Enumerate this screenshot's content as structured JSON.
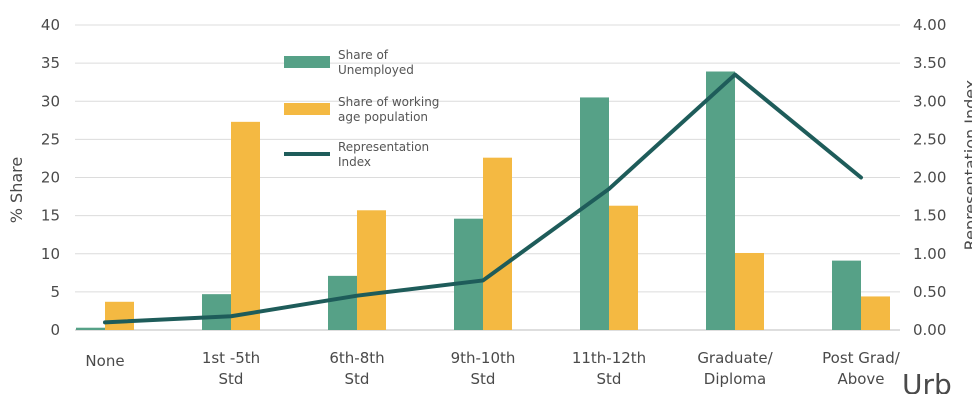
{
  "chart_data": {
    "type": "bar",
    "categories": [
      [
        "None"
      ],
      [
        "1st -5th",
        "Std"
      ],
      [
        "6th-8th",
        "Std"
      ],
      [
        "9th-10th",
        "Std"
      ],
      [
        "11th-12th",
        "Std"
      ],
      [
        "Graduate/",
        "Diploma"
      ],
      [
        "Post Grad/",
        "Above"
      ]
    ],
    "series": [
      {
        "name": "Share of Unemployed",
        "legend_lines": [
          "Share of",
          "Unemployed"
        ],
        "kind": "bar",
        "axis": "left",
        "color": "#56A187",
        "values": [
          0.3,
          4.7,
          7.1,
          14.6,
          30.5,
          33.9,
          9.1
        ]
      },
      {
        "name": "Share of working age population",
        "legend_lines": [
          "Share of working",
          "age population"
        ],
        "kind": "bar",
        "axis": "left",
        "color": "#F4B942",
        "values": [
          3.7,
          27.3,
          15.7,
          22.6,
          16.3,
          10.1,
          4.4
        ]
      },
      {
        "name": "Representation Index",
        "legend_lines": [
          "Representation",
          "Index"
        ],
        "kind": "line",
        "axis": "right",
        "color": "#1E5C5A",
        "values": [
          0.1,
          0.18,
          0.45,
          0.65,
          1.85,
          3.35,
          2.0
        ]
      }
    ],
    "ylabel": "% Share",
    "y2label": "Representation Index",
    "ylim": [
      0,
      40
    ],
    "yticks": [
      "0",
      "5",
      "10",
      "15",
      "20",
      "25",
      "30",
      "35",
      "40"
    ],
    "y2lim": [
      0,
      4
    ],
    "y2ticks": [
      "0.00",
      "0.50",
      "1.00",
      "1.50",
      "2.00",
      "2.50",
      "3.00",
      "3.50",
      "4.00"
    ],
    "grid": true,
    "legend_position": "top-center"
  },
  "partial_text": "Urb"
}
